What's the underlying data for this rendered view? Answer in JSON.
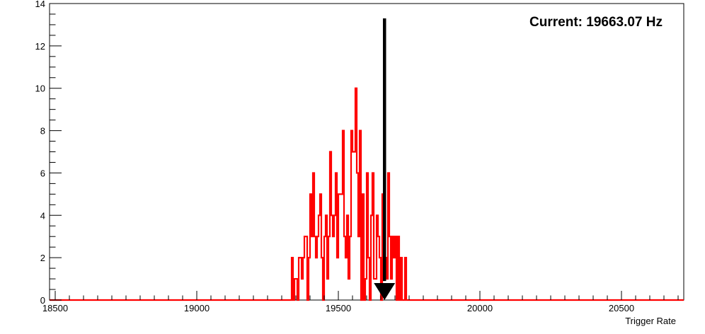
{
  "chart_data": {
    "type": "histogram",
    "title": "",
    "xlabel": "Trigger Rate",
    "ylabel": "",
    "xlim": [
      18480,
      20720
    ],
    "ylim": [
      0,
      14
    ],
    "x_ticks": [
      "18500",
      "19000",
      "19500",
      "20000",
      "20500"
    ],
    "y_ticks": [
      "0",
      "2",
      "4",
      "6",
      "8",
      "10",
      "12",
      "14"
    ],
    "annotation": "Current: 19663.07 Hz",
    "current_value": 19663.07,
    "grid": false,
    "legend": "none",
    "colors": {
      "histogram": "#ff0000",
      "arrow": "#000000",
      "axes": "#000000"
    },
    "bin_width": 5,
    "bins_start": 19335,
    "counts": [
      2,
      0,
      1,
      1,
      0,
      2,
      2,
      1,
      2,
      3,
      3,
      0,
      2,
      5,
      3,
      6,
      3,
      2,
      3,
      4,
      5,
      2,
      0,
      3,
      4,
      1,
      3,
      7,
      4,
      3,
      4,
      6,
      2,
      5,
      5,
      5,
      8,
      3,
      2,
      4,
      1,
      3,
      8,
      7,
      7,
      10,
      6,
      3,
      8,
      0,
      5,
      0,
      1,
      6,
      2,
      0,
      4,
      6,
      1,
      1,
      4,
      3,
      2,
      0,
      5,
      3,
      2,
      1,
      6,
      3,
      1,
      3,
      2,
      3,
      0,
      3,
      0,
      2,
      0,
      0,
      2
    ],
    "description_note": ""
  }
}
